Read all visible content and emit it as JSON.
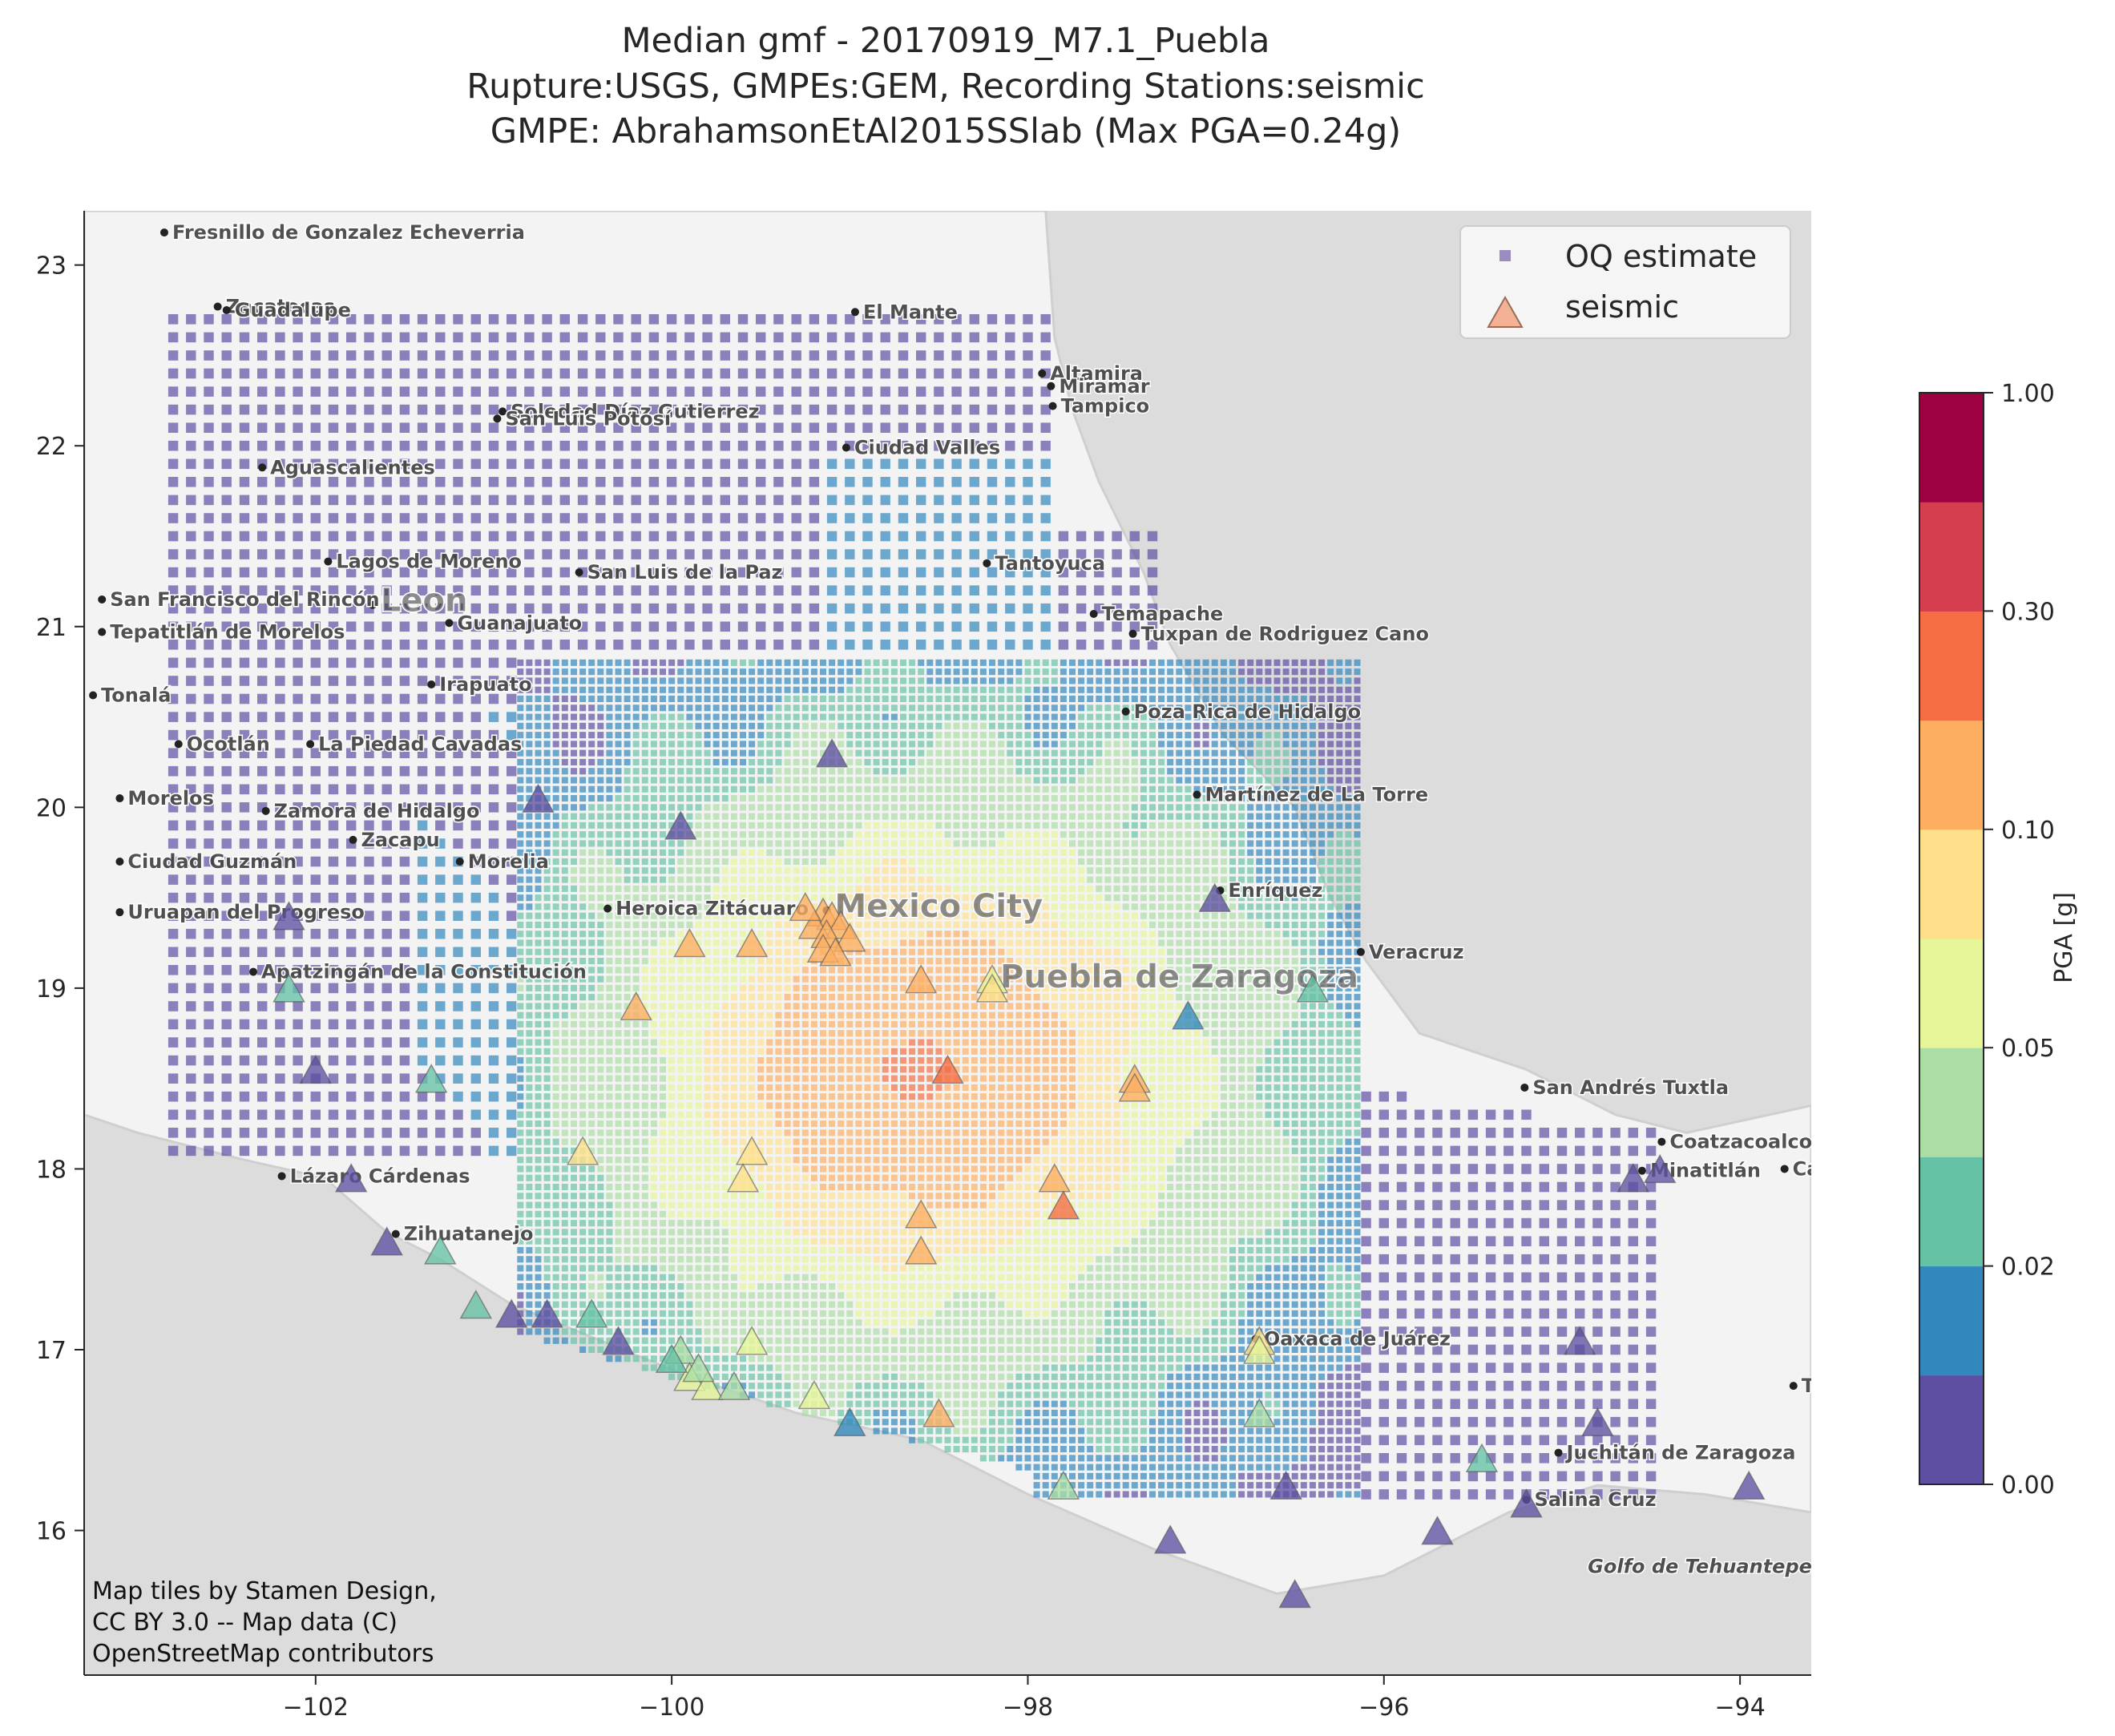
{
  "title_lines": [
    "Median gmf - 20170919_M7.1_Puebla",
    "Rupture:USGS, GMPEs:GEM, Recording Stations:seismic",
    "GMPE: AbrahamsonEtAl2015SSlab (Max PGA=0.24g)"
  ],
  "attribution": [
    "Map tiles by Stamen Design,",
    "CC BY 3.0 -- Map data (C)",
    "OpenStreetMap contributors"
  ],
  "colors": {
    "land": "#f3f3f3",
    "water": "#dcdcdc",
    "oq_marker": "#6a51a3",
    "seismic_marker": "#f4a582",
    "colorbar": [
      "#5e4fa2",
      "#3288bd",
      "#66c2a5",
      "#abdda4",
      "#e6f598",
      "#fee08b",
      "#fdae61",
      "#f46d43",
      "#d53e4f",
      "#9e0142"
    ]
  },
  "chart_data": {
    "type": "scatter",
    "xlim": [
      -103.3,
      -93.6
    ],
    "ylim": [
      15.2,
      23.3
    ],
    "xticks": [
      -102,
      -100,
      -98,
      -96,
      -94
    ],
    "xtick_labels": [
      "−102",
      "−100",
      "−98",
      "−96",
      "−94"
    ],
    "yticks": [
      16,
      17,
      18,
      19,
      20,
      21,
      22,
      23
    ],
    "ytick_labels": [
      "16",
      "17",
      "18",
      "19",
      "20",
      "21",
      "22",
      "23"
    ],
    "grid": false,
    "legend_position": "top-right",
    "legend": [
      {
        "label": "OQ estimate",
        "marker": "square"
      },
      {
        "label": "seismic",
        "marker": "triangle"
      }
    ],
    "colorbar": {
      "label": "PGA [g]",
      "tick_labels": [
        "0.00",
        "0.02",
        "0.05",
        "0.10",
        "0.30",
        "1.00"
      ],
      "tick_levels": [
        0,
        2,
        4,
        6,
        8,
        10
      ],
      "bounds": [
        0,
        0.01,
        0.02,
        0.03,
        0.05,
        0.07,
        0.1,
        0.2,
        0.3,
        0.5,
        1.0
      ]
    },
    "oq_estimate_grid": {
      "lon_step": 0.05,
      "lat_step": 0.05,
      "epicenter": [
        -98.6,
        18.55
      ],
      "max_pga": 0.24
    },
    "seismic": [
      [
        -99.15,
        19.42,
        0.1
      ],
      [
        -99.1,
        19.4,
        0.1
      ],
      [
        -99.05,
        19.35,
        0.1
      ],
      [
        -99.2,
        19.35,
        0.1
      ],
      [
        -99.13,
        19.3,
        0.1
      ],
      [
        -99.0,
        19.28,
        0.1
      ],
      [
        -99.15,
        19.22,
        0.1
      ],
      [
        -99.08,
        19.2,
        0.1
      ],
      [
        -99.25,
        19.45,
        0.1
      ],
      [
        -99.9,
        19.25,
        0.15
      ],
      [
        -99.55,
        19.25,
        0.15
      ],
      [
        -100.2,
        18.9,
        0.1
      ],
      [
        -98.2,
        19.05,
        0.05
      ],
      [
        -98.2,
        19.0,
        0.07
      ],
      [
        -98.6,
        19.05,
        0.15
      ],
      [
        -98.45,
        18.55,
        0.2
      ],
      [
        -97.4,
        18.5,
        0.15
      ],
      [
        -97.4,
        18.45,
        0.15
      ],
      [
        -97.85,
        17.95,
        0.15
      ],
      [
        -97.8,
        17.8,
        0.25
      ],
      [
        -98.6,
        17.75,
        0.15
      ],
      [
        -98.6,
        17.55,
        0.15
      ],
      [
        -99.55,
        18.1,
        0.08
      ],
      [
        -99.6,
        17.95,
        0.08
      ],
      [
        -100.5,
        18.1,
        0.08
      ],
      [
        -98.5,
        16.65,
        0.15
      ],
      [
        -99.55,
        17.05,
        0.05
      ],
      [
        -99.95,
        17.0,
        0.04
      ],
      [
        -99.9,
        16.85,
        0.05
      ],
      [
        -99.8,
        16.8,
        0.05
      ],
      [
        -99.85,
        16.9,
        0.03
      ],
      [
        -99.65,
        16.8,
        0.035
      ],
      [
        -99.2,
        16.75,
        0.05
      ],
      [
        -99.0,
        16.6,
        0.015
      ],
      [
        -100.0,
        16.95,
        0.02
      ],
      [
        -100.3,
        17.05,
        0.005
      ],
      [
        -100.7,
        17.2,
        0.005
      ],
      [
        -100.9,
        17.2,
        0.005
      ],
      [
        -101.1,
        17.25,
        0.02
      ],
      [
        -100.45,
        17.2,
        0.025
      ],
      [
        -101.3,
        17.55,
        0.02
      ],
      [
        -101.6,
        17.6,
        0.005
      ],
      [
        -96.7,
        17.05,
        0.07
      ],
      [
        -96.7,
        17.0,
        0.06
      ],
      [
        -96.7,
        16.65,
        0.03
      ],
      [
        -96.4,
        19.0,
        0.025
      ],
      [
        -97.1,
        18.85,
        0.015
      ],
      [
        -96.95,
        19.5,
        0.005
      ],
      [
        -97.8,
        16.25,
        0.03
      ],
      [
        -97.2,
        15.95,
        0.005
      ],
      [
        -96.5,
        15.65,
        0.005
      ],
      [
        -96.55,
        16.25,
        0.005
      ],
      [
        -95.7,
        16.0,
        0.005
      ],
      [
        -95.45,
        16.4,
        0.02
      ],
      [
        -95.2,
        16.15,
        0.005
      ],
      [
        -94.9,
        17.05,
        0.005
      ],
      [
        -94.8,
        16.6,
        0.005
      ],
      [
        -94.6,
        17.95,
        0.005
      ],
      [
        -94.45,
        18.0,
        0.005
      ],
      [
        -93.95,
        16.25,
        0.005
      ],
      [
        -101.8,
        17.95,
        0.005
      ],
      [
        -102.0,
        18.55,
        0.005
      ],
      [
        -101.35,
        18.5,
        0.02
      ],
      [
        -102.15,
        19.0,
        0.02
      ],
      [
        -102.15,
        19.4,
        0.005
      ],
      [
        -99.95,
        19.9,
        0.005
      ],
      [
        -100.75,
        20.05,
        0.005
      ],
      [
        -99.1,
        20.3,
        0.005
      ]
    ]
  },
  "places": [
    {
      "name": "Fresnillo de Gonzalez Echeverria",
      "lon": -102.85,
      "lat": 23.18
    },
    {
      "name": "Zacatecas",
      "lon": -102.55,
      "lat": 22.77
    },
    {
      "name": "Guadalupe",
      "lon": -102.5,
      "lat": 22.75
    },
    {
      "name": "El Mante",
      "lon": -98.97,
      "lat": 22.74
    },
    {
      "name": "Altamira",
      "lon": -97.92,
      "lat": 22.4
    },
    {
      "name": "Miramar",
      "lon": -97.87,
      "lat": 22.33
    },
    {
      "name": "Tampico",
      "lon": -97.86,
      "lat": 22.22
    },
    {
      "name": "Soledad Díaz Gutierrez",
      "lon": -100.95,
      "lat": 22.19
    },
    {
      "name": "San Luis Potosí",
      "lon": -100.98,
      "lat": 22.15
    },
    {
      "name": "Ciudad Valles",
      "lon": -99.02,
      "lat": 21.99
    },
    {
      "name": "Aguascalientes",
      "lon": -102.3,
      "lat": 21.88
    },
    {
      "name": "Lagos de Moreno",
      "lon": -101.93,
      "lat": 21.36
    },
    {
      "name": "San Luis de la Paz",
      "lon": -100.52,
      "lat": 21.3
    },
    {
      "name": "Tantoyuca",
      "lon": -98.23,
      "lat": 21.35
    },
    {
      "name": "Leon",
      "lon": -101.68,
      "lat": 21.12
    },
    {
      "name": "Temapache",
      "lon": -97.63,
      "lat": 21.07
    },
    {
      "name": "Tuxpan de Rodriguez Cano",
      "lon": -97.41,
      "lat": 20.96
    },
    {
      "name": "Guanajuato",
      "lon": -101.25,
      "lat": 21.02
    },
    {
      "name": "Irapuato",
      "lon": -101.35,
      "lat": 20.68
    },
    {
      "name": "Poza Rica de Hidalgo",
      "lon": -97.45,
      "lat": 20.53
    },
    {
      "name": "La Piedad Cavadas",
      "lon": -102.03,
      "lat": 20.35
    },
    {
      "name": "Zamora de Hidalgo",
      "lon": -102.28,
      "lat": 19.98
    },
    {
      "name": "Martínez de La Torre",
      "lon": -97.05,
      "lat": 20.07
    },
    {
      "name": "Zacapu",
      "lon": -101.79,
      "lat": 19.82
    },
    {
      "name": "Morelia",
      "lon": -101.19,
      "lat": 19.7
    },
    {
      "name": "Mexico City",
      "lon": -99.13,
      "lat": 19.43
    },
    {
      "name": "Enríquez",
      "lon": -96.92,
      "lat": 19.54
    },
    {
      "name": "Heroica Zitácuaro",
      "lon": -100.36,
      "lat": 19.44
    },
    {
      "name": "Veracruz",
      "lon": -96.13,
      "lat": 19.2
    },
    {
      "name": "Puebla de Zaragoza",
      "lon": -98.2,
      "lat": 19.04
    },
    {
      "name": "Apatzingán de la Constitución",
      "lon": -102.35,
      "lat": 19.09
    },
    {
      "name": "San Andrés Tuxtla",
      "lon": -95.21,
      "lat": 18.45
    },
    {
      "name": "Coatzacoalcos",
      "lon": -94.44,
      "lat": 18.15
    },
    {
      "name": "Lázaro Cárdenas",
      "lon": -102.19,
      "lat": 17.96
    },
    {
      "name": "Minatitlán",
      "lon": -94.55,
      "lat": 17.99
    },
    {
      "name": "Zihuatanejo",
      "lon": -101.55,
      "lat": 17.64
    },
    {
      "name": "Oaxaca de Juárez",
      "lon": -96.72,
      "lat": 17.06
    },
    {
      "name": "Juchitán de Zaragoza",
      "lon": -95.02,
      "lat": 16.43
    },
    {
      "name": "Salina Cruz",
      "lon": -95.2,
      "lat": 16.17
    },
    {
      "name": "Golfo de Tehuantepec",
      "lon": -94.9,
      "lat": 15.8
    },
    {
      "name": "Tonalá",
      "lon": -103.25,
      "lat": 20.62
    },
    {
      "name": "Ocotlán",
      "lon": -102.77,
      "lat": 20.35
    },
    {
      "name": "Morelos",
      "lon": -103.1,
      "lat": 20.05
    },
    {
      "name": "Ciudad Guzmán",
      "lon": -103.1,
      "lat": 19.7
    },
    {
      "name": "Uruapan del Progreso",
      "lon": -103.1,
      "lat": 19.42
    },
    {
      "name": "San Francisco del Rincón",
      "lon": -103.2,
      "lat": 21.15
    },
    {
      "name": "Tepatitlán de Morelos",
      "lon": -103.2,
      "lat": 20.97
    },
    {
      "name": "Tuxtla",
      "lon": -93.7,
      "lat": 16.8
    },
    {
      "name": "Cárdenas",
      "lon": -93.75,
      "lat": 18.0
    }
  ]
}
